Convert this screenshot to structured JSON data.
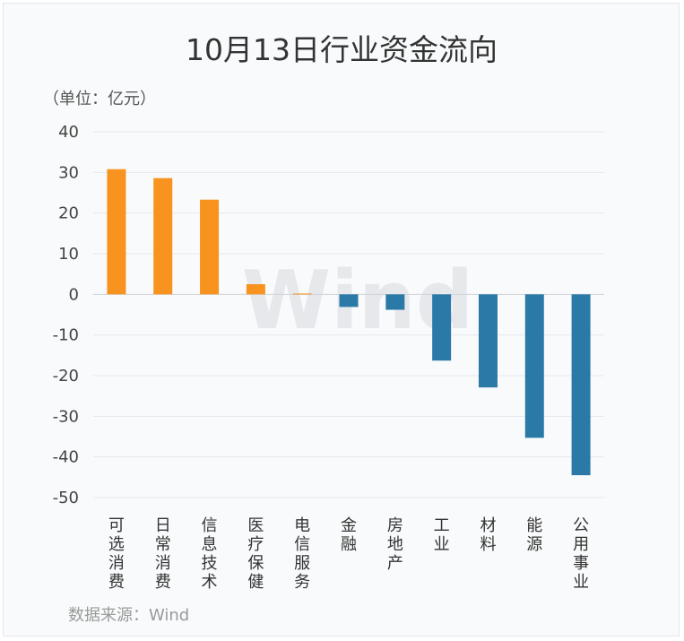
{
  "chart_data": {
    "type": "bar",
    "title": "10月13日行业资金流向",
    "unit_label": "（单位：亿元）",
    "source": "数据来源：Wind",
    "watermark": "Wind",
    "categories": [
      "可选消费",
      "日常消费",
      "信息技术",
      "医疗保健",
      "电信服务",
      "金融",
      "房地产",
      "工业",
      "材料",
      "能源",
      "公用事业"
    ],
    "values": [
      30.8,
      28.6,
      23.3,
      2.5,
      0.2,
      -3.1,
      -3.8,
      -16.3,
      -22.9,
      -35.3,
      -44.5
    ],
    "ylim": [
      -50,
      40
    ],
    "yticks": [
      40,
      30,
      20,
      10,
      0,
      -10,
      -20,
      -30,
      -40,
      -50
    ],
    "colors": {
      "positive": "#f7931e",
      "negative": "#2a79a6"
    },
    "grid": true
  }
}
